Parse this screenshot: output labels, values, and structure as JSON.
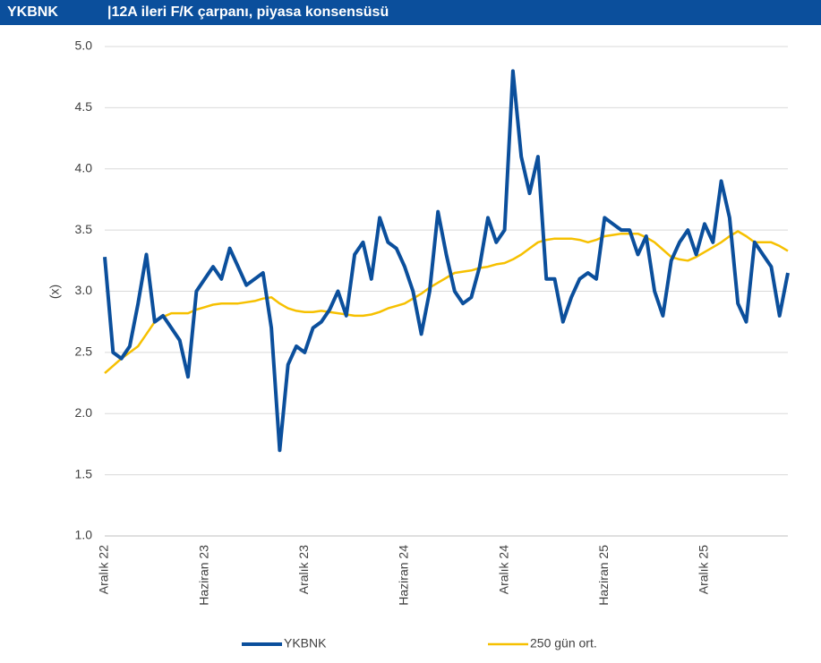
{
  "chart_data": {
    "type": "line",
    "ticker": "YKBNK",
    "title": "|12A ileri F/K çarpanı, piyasa konsensüsü",
    "ylabel": "(x)",
    "categories": [
      "Aralık 22",
      null,
      null,
      null,
      null,
      null,
      null,
      null,
      null,
      null,
      null,
      null,
      "Haziran 23",
      null,
      null,
      null,
      null,
      null,
      null,
      null,
      null,
      null,
      null,
      null,
      "Aralık 23",
      null,
      null,
      null,
      null,
      null,
      null,
      null,
      null,
      null,
      null,
      null,
      "Haziran 24",
      null,
      null,
      null,
      null,
      null,
      null,
      null,
      null,
      null,
      null,
      null,
      "Aralık 24",
      null,
      null,
      null,
      null,
      null,
      null,
      null,
      null,
      null,
      null,
      null,
      "Haziran 25",
      null,
      null,
      null,
      null,
      null,
      null,
      null,
      null,
      null,
      null,
      null,
      "Aralık 25",
      null,
      null,
      null,
      null,
      null,
      null,
      null,
      null,
      null,
      null
    ],
    "series": [
      {
        "name": "YKBNK",
        "color": "#0b4f9c",
        "width": 4,
        "values": [
          3.28,
          2.5,
          2.45,
          2.55,
          2.9,
          3.3,
          2.75,
          2.8,
          2.7,
          2.6,
          2.3,
          3.0,
          3.1,
          3.2,
          3.1,
          3.35,
          3.2,
          3.05,
          3.1,
          3.15,
          2.7,
          1.7,
          2.4,
          2.55,
          2.5,
          2.7,
          2.75,
          2.85,
          3.0,
          2.8,
          3.3,
          3.4,
          3.1,
          3.6,
          3.4,
          3.35,
          3.2,
          3.0,
          2.65,
          3.0,
          3.65,
          3.3,
          3.0,
          2.9,
          2.95,
          3.2,
          3.6,
          3.4,
          3.5,
          4.8,
          4.1,
          3.8,
          4.1,
          3.1,
          3.1,
          2.75,
          2.95,
          3.1,
          3.15,
          3.1,
          3.6,
          3.55,
          3.5,
          3.5,
          3.3,
          3.45,
          3.0,
          2.8,
          3.25,
          3.4,
          3.5,
          3.3,
          3.55,
          3.4,
          3.9,
          3.6,
          2.9,
          2.75,
          3.4,
          3.3,
          3.2,
          2.8,
          3.15
        ]
      },
      {
        "name": "250 gün ort.",
        "color": "#f6c000",
        "width": 2.5,
        "values": [
          2.33,
          2.39,
          2.45,
          2.5,
          2.55,
          2.65,
          2.75,
          2.79,
          2.82,
          2.82,
          2.82,
          2.85,
          2.87,
          2.89,
          2.9,
          2.9,
          2.9,
          2.91,
          2.92,
          2.94,
          2.95,
          2.9,
          2.86,
          2.84,
          2.83,
          2.83,
          2.84,
          2.83,
          2.82,
          2.81,
          2.8,
          2.8,
          2.81,
          2.83,
          2.86,
          2.88,
          2.9,
          2.94,
          2.98,
          3.03,
          3.07,
          3.11,
          3.15,
          3.16,
          3.17,
          3.19,
          3.2,
          3.22,
          3.23,
          3.26,
          3.3,
          3.35,
          3.4,
          3.42,
          3.43,
          3.43,
          3.43,
          3.42,
          3.4,
          3.42,
          3.45,
          3.46,
          3.47,
          3.47,
          3.47,
          3.44,
          3.4,
          3.34,
          3.28,
          3.26,
          3.25,
          3.28,
          3.32,
          3.36,
          3.4,
          3.45,
          3.49,
          3.45,
          3.4,
          3.4,
          3.4,
          3.37,
          3.33
        ]
      }
    ],
    "ylim": [
      1,
      5
    ],
    "yticks": [
      {
        "value": 1,
        "label": "1.0"
      },
      {
        "value": 1.5,
        "label": "1.5"
      },
      {
        "value": 2,
        "label": "2.0"
      },
      {
        "value": 2.5,
        "label": "2.5"
      },
      {
        "value": 3,
        "label": "3.0"
      },
      {
        "value": 3.5,
        "label": "3.5"
      },
      {
        "value": 4,
        "label": "4.0"
      },
      {
        "value": 4.5,
        "label": "4.5"
      },
      {
        "value": 5,
        "label": "5.0"
      }
    ],
    "grid": true,
    "legend": "bottom"
  }
}
